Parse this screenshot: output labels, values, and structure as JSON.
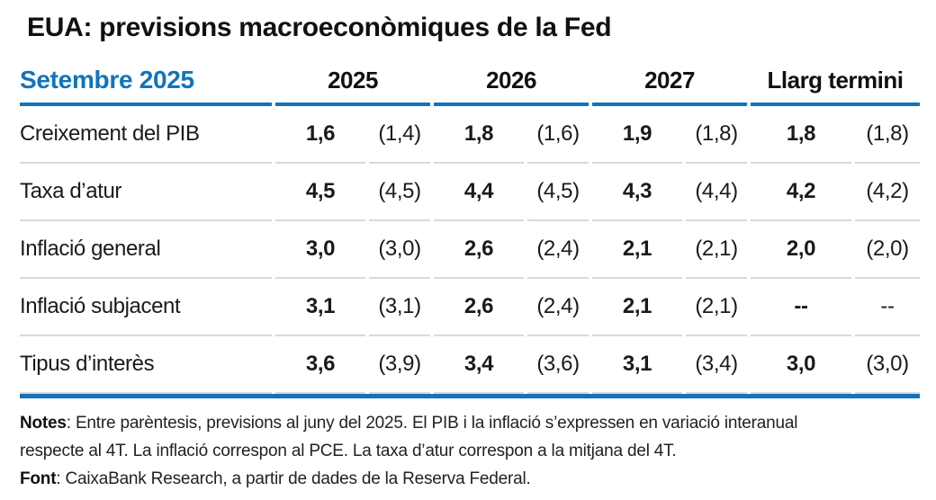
{
  "title": "EUA: previsions macroeconòmiques de la Fed",
  "table": {
    "corner_label": "Setembre 2025",
    "column_headers": [
      "2025",
      "2026",
      "2027",
      "Llarg termini"
    ],
    "rows": [
      {
        "label": "Creixement del PIB",
        "cells": [
          {
            "cur": "1,6",
            "prev": "(1,4)"
          },
          {
            "cur": "1,8",
            "prev": "(1,6)"
          },
          {
            "cur": "1,9",
            "prev": "(1,8)"
          },
          {
            "cur": "1,8",
            "prev": "(1,8)"
          }
        ]
      },
      {
        "label": "Taxa d’atur",
        "cells": [
          {
            "cur": "4,5",
            "prev": "(4,5)"
          },
          {
            "cur": "4,4",
            "prev": "(4,5)"
          },
          {
            "cur": "4,3",
            "prev": "(4,4)"
          },
          {
            "cur": "4,2",
            "prev": "(4,2)"
          }
        ]
      },
      {
        "label": "Inflació general",
        "cells": [
          {
            "cur": "3,0",
            "prev": "(3,0)"
          },
          {
            "cur": "2,6",
            "prev": "(2,4)"
          },
          {
            "cur": "2,1",
            "prev": "(2,1)"
          },
          {
            "cur": "2,0",
            "prev": "(2,0)"
          }
        ]
      },
      {
        "label": "Inflació subjacent",
        "cells": [
          {
            "cur": "3,1",
            "prev": "(3,1)"
          },
          {
            "cur": "2,6",
            "prev": "(2,4)"
          },
          {
            "cur": "2,1",
            "prev": "(2,1)"
          },
          {
            "cur": "--",
            "prev": "--"
          }
        ]
      },
      {
        "label": "Tipus d’interès",
        "cells": [
          {
            "cur": "3,6",
            "prev": "(3,9)"
          },
          {
            "cur": "3,4",
            "prev": "(3,6)"
          },
          {
            "cur": "3,1",
            "prev": "(3,4)"
          },
          {
            "cur": "3,0",
            "prev": "(3,0)"
          }
        ]
      }
    ]
  },
  "footnotes": {
    "notes_label": "Notes",
    "notes_line1": ": Entre parèntesis, previsions al juny del 2025. El PIB i la inflació s’expressen en variació interanual",
    "notes_line2": "respecte al 4T. La inflació correspon al PCE. La taxa d’atur correspon a la mitjana del 4T.",
    "source_label": "Font",
    "source_text": ": CaixaBank Research, a partir de dades de la Reserva Federal."
  },
  "colors": {
    "accent_blue": "#1173BD",
    "separator_gray": "#D9D9D9"
  },
  "chart_data": {
    "type": "table",
    "title": "EUA: previsions macroeconòmiques de la Fed",
    "as_of": "Setembre 2025",
    "columns": [
      "2025",
      "2026",
      "2027",
      "Llarg termini"
    ],
    "value_format": "setembre 2025 (previsió juny 2025)",
    "rows": [
      {
        "indicator": "Creixement del PIB",
        "current": [
          1.6,
          1.8,
          1.9,
          1.8
        ],
        "previous": [
          1.4,
          1.6,
          1.8,
          1.8
        ]
      },
      {
        "indicator": "Taxa d’atur",
        "current": [
          4.5,
          4.4,
          4.3,
          4.2
        ],
        "previous": [
          4.5,
          4.5,
          4.4,
          4.2
        ]
      },
      {
        "indicator": "Inflació general",
        "current": [
          3.0,
          2.6,
          2.1,
          2.0
        ],
        "previous": [
          3.0,
          2.4,
          2.1,
          2.0
        ]
      },
      {
        "indicator": "Inflació subjacent",
        "current": [
          3.1,
          2.6,
          2.1,
          null
        ],
        "previous": [
          3.1,
          2.4,
          2.1,
          null
        ]
      },
      {
        "indicator": "Tipus d’interès",
        "current": [
          3.6,
          3.4,
          3.1,
          3.0
        ],
        "previous": [
          3.9,
          3.6,
          3.4,
          3.0
        ]
      }
    ]
  }
}
